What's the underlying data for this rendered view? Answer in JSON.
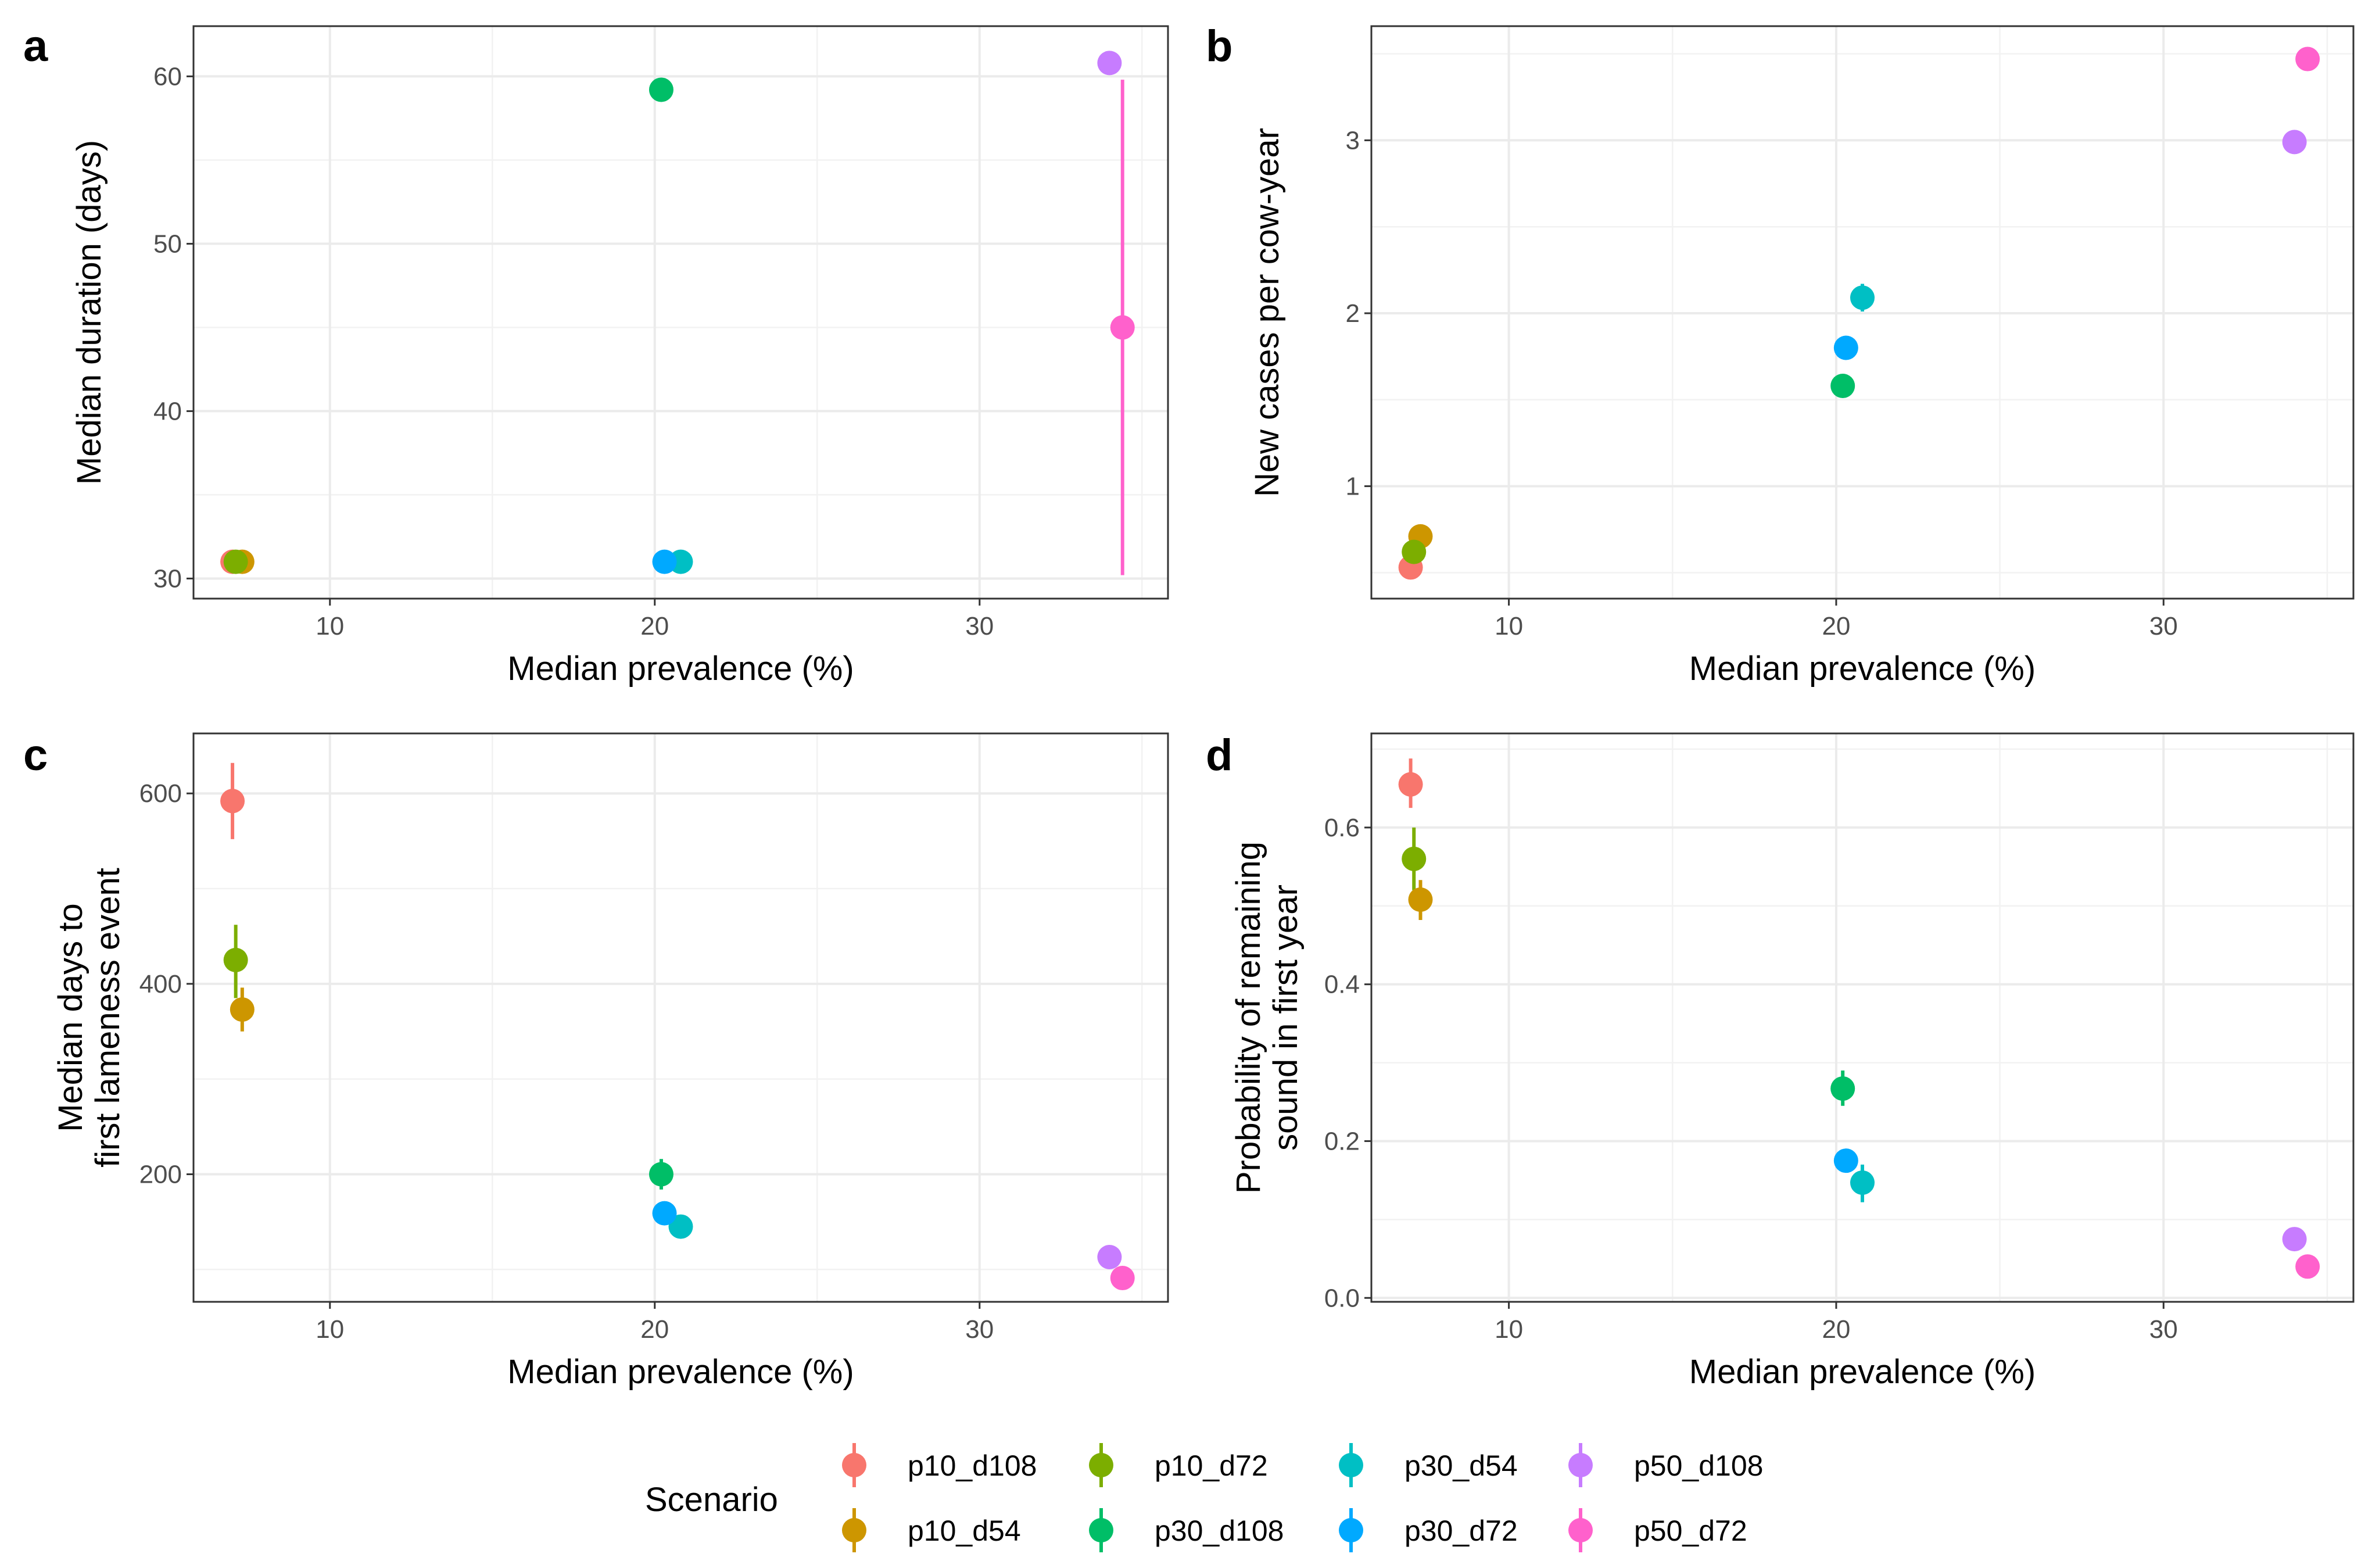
{
  "legend": {
    "title": "Scenario",
    "items": [
      {
        "name": "p10_d108",
        "color": "#F8766D"
      },
      {
        "name": "p10_d54",
        "color": "#CD9600"
      },
      {
        "name": "p10_d72",
        "color": "#7CAE00"
      },
      {
        "name": "p30_d108",
        "color": "#00BE67"
      },
      {
        "name": "p30_d54",
        "color": "#00BFC4"
      },
      {
        "name": "p30_d72",
        "color": "#00A9FF"
      },
      {
        "name": "p50_d108",
        "color": "#C77CFF"
      },
      {
        "name": "p50_d72",
        "color": "#FF61CC"
      }
    ]
  },
  "chart_data": [
    {
      "panel": "a",
      "type": "scatter",
      "xlabel": "Median prevalence (%)",
      "ylabel_lines": [
        "Median duration (days)"
      ],
      "xlim": [
        5.8,
        35.8
      ],
      "ylim": [
        28.8,
        63.0
      ],
      "xticks": [
        10,
        20,
        30
      ],
      "yticks": [
        30,
        40,
        50,
        60
      ],
      "xticks_minor": [
        15,
        25,
        35
      ],
      "yticks_minor": [
        35,
        45,
        55
      ],
      "series": [
        {
          "name": "p10_d108",
          "x": 7.0,
          "y": 31.0,
          "ymin": 31.0,
          "ymax": 31.0
        },
        {
          "name": "p10_d54",
          "x": 7.3,
          "y": 31.0,
          "ymin": 31.0,
          "ymax": 31.0
        },
        {
          "name": "p10_d72",
          "x": 7.1,
          "y": 31.0,
          "ymin": 31.0,
          "ymax": 31.0
        },
        {
          "name": "p30_d108",
          "x": 20.2,
          "y": 59.2,
          "ymin": 59.2,
          "ymax": 59.2
        },
        {
          "name": "p30_d54",
          "x": 20.8,
          "y": 31.0,
          "ymin": 31.0,
          "ymax": 31.0
        },
        {
          "name": "p30_d72",
          "x": 20.3,
          "y": 31.0,
          "ymin": 31.0,
          "ymax": 31.0
        },
        {
          "name": "p50_d108",
          "x": 34.0,
          "y": 60.8,
          "ymin": 60.8,
          "ymax": 60.8
        },
        {
          "name": "p50_d72",
          "x": 34.4,
          "y": 45.0,
          "ymin": 30.2,
          "ymax": 59.8
        }
      ]
    },
    {
      "panel": "b",
      "type": "scatter",
      "xlabel": "Median prevalence (%)",
      "ylabel_lines": [
        "New cases per cow-year"
      ],
      "xlim": [
        5.8,
        35.8
      ],
      "ylim": [
        0.35,
        3.66
      ],
      "xticks": [
        10,
        20,
        30
      ],
      "yticks": [
        1,
        2,
        3
      ],
      "xticks_minor": [
        15,
        25,
        35
      ],
      "yticks_minor": [
        0.5,
        1.5,
        2.5,
        3.5
      ],
      "series": [
        {
          "name": "p10_d108",
          "x": 7.0,
          "y": 0.53,
          "ymin": 0.53,
          "ymax": 0.53
        },
        {
          "name": "p10_d54",
          "x": 7.3,
          "y": 0.71,
          "ymin": 0.71,
          "ymax": 0.71
        },
        {
          "name": "p10_d72",
          "x": 7.1,
          "y": 0.62,
          "ymin": 0.62,
          "ymax": 0.62
        },
        {
          "name": "p30_d108",
          "x": 20.2,
          "y": 1.58,
          "ymin": 1.58,
          "ymax": 1.58
        },
        {
          "name": "p30_d54",
          "x": 20.8,
          "y": 2.09,
          "ymin": 2.01,
          "ymax": 2.17
        },
        {
          "name": "p30_d72",
          "x": 20.3,
          "y": 1.8,
          "ymin": 1.8,
          "ymax": 1.8
        },
        {
          "name": "p50_d108",
          "x": 34.0,
          "y": 2.99,
          "ymin": 2.99,
          "ymax": 2.99
        },
        {
          "name": "p50_d72",
          "x": 34.4,
          "y": 3.47,
          "ymin": 3.47,
          "ymax": 3.47
        }
      ]
    },
    {
      "panel": "c",
      "type": "scatter",
      "xlabel": "Median prevalence (%)",
      "ylabel_lines": [
        "Median days to",
        "first lameness event"
      ],
      "xlim": [
        5.8,
        35.8
      ],
      "ylim": [
        66,
        663
      ],
      "xticks": [
        10,
        20,
        30
      ],
      "yticks": [
        200,
        400,
        600
      ],
      "xticks_minor": [
        15,
        25,
        35
      ],
      "yticks_minor": [
        100,
        300,
        500
      ],
      "series": [
        {
          "name": "p10_d108",
          "x": 7.0,
          "y": 592,
          "ymin": 552,
          "ymax": 632
        },
        {
          "name": "p10_d54",
          "x": 7.3,
          "y": 373,
          "ymin": 350,
          "ymax": 396
        },
        {
          "name": "p10_d72",
          "x": 7.1,
          "y": 425,
          "ymin": 385,
          "ymax": 462
        },
        {
          "name": "p30_d108",
          "x": 20.2,
          "y": 200,
          "ymin": 184,
          "ymax": 216
        },
        {
          "name": "p30_d54",
          "x": 20.8,
          "y": 145,
          "ymin": 139,
          "ymax": 151
        },
        {
          "name": "p30_d72",
          "x": 20.3,
          "y": 159,
          "ymin": 152,
          "ymax": 166
        },
        {
          "name": "p50_d108",
          "x": 34.0,
          "y": 113,
          "ymin": 113,
          "ymax": 113
        },
        {
          "name": "p50_d72",
          "x": 34.4,
          "y": 91,
          "ymin": 91,
          "ymax": 91
        }
      ]
    },
    {
      "panel": "d",
      "type": "scatter",
      "xlabel": "Median prevalence (%)",
      "ylabel_lines": [
        "Probability of remaining",
        "sound in first year"
      ],
      "xlim": [
        5.8,
        35.8
      ],
      "ylim": [
        -0.005,
        0.72
      ],
      "xticks": [
        10,
        20,
        30
      ],
      "yticks": [
        0.0,
        0.2,
        0.4,
        0.6
      ],
      "ytick_labels": [
        "0.0",
        "0.2",
        "0.4",
        "0.6"
      ],
      "xticks_minor": [
        15,
        25,
        35
      ],
      "yticks_minor": [
        0.1,
        0.3,
        0.5,
        0.7
      ],
      "series": [
        {
          "name": "p10_d108",
          "x": 7.0,
          "y": 0.655,
          "ymin": 0.625,
          "ymax": 0.688
        },
        {
          "name": "p10_d54",
          "x": 7.3,
          "y": 0.508,
          "ymin": 0.482,
          "ymax": 0.533
        },
        {
          "name": "p10_d72",
          "x": 7.1,
          "y": 0.56,
          "ymin": 0.52,
          "ymax": 0.6
        },
        {
          "name": "p30_d108",
          "x": 20.2,
          "y": 0.267,
          "ymin": 0.245,
          "ymax": 0.29
        },
        {
          "name": "p30_d54",
          "x": 20.8,
          "y": 0.147,
          "ymin": 0.122,
          "ymax": 0.17
        },
        {
          "name": "p30_d72",
          "x": 20.3,
          "y": 0.175,
          "ymin": 0.16,
          "ymax": 0.19
        },
        {
          "name": "p50_d108",
          "x": 34.0,
          "y": 0.075,
          "ymin": 0.075,
          "ymax": 0.075
        },
        {
          "name": "p50_d72",
          "x": 34.4,
          "y": 0.04,
          "ymin": 0.04,
          "ymax": 0.04
        }
      ]
    }
  ]
}
